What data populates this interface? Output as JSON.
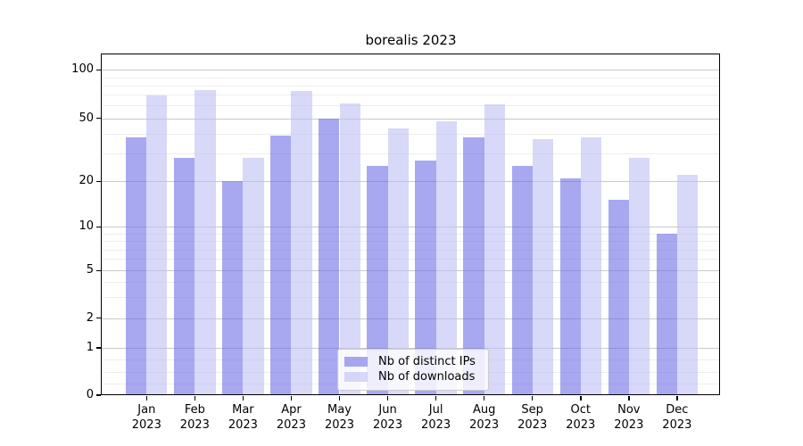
{
  "chart_data": {
    "type": "bar",
    "title": "borealis 2023",
    "categories": [
      "Jan 2023",
      "Feb 2023",
      "Mar 2023",
      "Apr 2023",
      "May 2023",
      "Jun 2023",
      "Jul 2023",
      "Aug 2023",
      "Sep 2023",
      "Oct 2023",
      "Nov 2023",
      "Dec 2023"
    ],
    "series": [
      {
        "name": "Nb of distinct IPs",
        "color": "rgba(110,110,230,0.6)",
        "color_hex_on_white": "#a9a9ef",
        "values": [
          38,
          28,
          20,
          39,
          50,
          25,
          27,
          38,
          25,
          21,
          15,
          9
        ]
      },
      {
        "name": "Nb of downloads",
        "color": "rgba(190,190,243,0.6)",
        "color_hex_on_white": "#d9d9f7",
        "values": [
          69,
          75,
          28,
          74,
          62,
          43,
          48,
          61,
          37,
          38,
          28,
          22
        ]
      }
    ],
    "xlabel": "",
    "ylabel": "",
    "yscale": "symlog",
    "ylim": [
      0,
      126
    ],
    "y_major_ticks": [
      0,
      1,
      2,
      5,
      10,
      20,
      50,
      100
    ],
    "y_minor_ticks": [
      0.25,
      0.5,
      0.75,
      3,
      4,
      6,
      7,
      8,
      9,
      30,
      40,
      60,
      70,
      80,
      90
    ],
    "grid": true,
    "legend_position": "lower center",
    "colors": {
      "axis": "#000000",
      "grid_major": "#c9c9c9",
      "grid_minor": "#ededed",
      "background": "#ffffff",
      "legend_border": "#cccccc"
    }
  }
}
